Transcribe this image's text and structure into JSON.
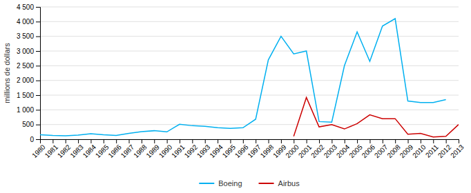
{
  "chart_data": {
    "type": "line",
    "x": [
      1980,
      1981,
      1982,
      1983,
      1984,
      1985,
      1986,
      1987,
      1988,
      1989,
      1990,
      1991,
      1992,
      1993,
      1994,
      1995,
      1996,
      1997,
      1998,
      1999,
      2000,
      2001,
      2002,
      2003,
      2004,
      2005,
      2006,
      2007,
      2008,
      2009,
      2010,
      2011,
      2012,
      2013
    ],
    "series": [
      {
        "name": "Boeing",
        "color": "#00b0f0",
        "values": [
          150,
          130,
          120,
          140,
          190,
          150,
          130,
          200,
          260,
          290,
          250,
          510,
          460,
          440,
          390,
          370,
          390,
          680,
          2700,
          3500,
          2900,
          3000,
          600,
          580,
          2500,
          3650,
          2650,
          3850,
          4100,
          1300,
          1250,
          1250,
          1350,
          null
        ]
      },
      {
        "name": "Airbus",
        "color": "#cc0000",
        "values": [
          null,
          null,
          null,
          null,
          null,
          null,
          null,
          null,
          null,
          null,
          null,
          null,
          null,
          null,
          null,
          null,
          null,
          null,
          null,
          null,
          100,
          1420,
          420,
          500,
          350,
          530,
          830,
          700,
          700,
          170,
          200,
          75,
          100,
          500
        ]
      }
    ],
    "y_label": "millions de dollars",
    "xlim": [
      1980,
      2013
    ],
    "xticks": [
      1980,
      1981,
      1982,
      1983,
      1984,
      1985,
      1986,
      1987,
      1988,
      1989,
      1990,
      1991,
      1992,
      1993,
      1994,
      1995,
      1996,
      1997,
      1998,
      1999,
      2000,
      2001,
      2002,
      2003,
      2004,
      2005,
      2006,
      2007,
      2008,
      2009,
      2010,
      2011,
      2012,
      2013
    ],
    "ylim": [
      0,
      4500
    ],
    "yticks": [
      0,
      500,
      {
        "value": 1000,
        "label": "1 000"
      },
      {
        "value": 1500,
        "label": "1 500"
      },
      {
        "value": 2000,
        "label": "2 000"
      },
      {
        "value": 2500,
        "label": "2 500"
      },
      {
        "value": 3000,
        "label": "3 000"
      },
      {
        "value": 3500,
        "label": "3 500"
      },
      {
        "value": 4000,
        "label": "4 000"
      },
      {
        "value": 4500,
        "label": "4 500"
      }
    ],
    "grid": true,
    "legend": "bottom"
  }
}
